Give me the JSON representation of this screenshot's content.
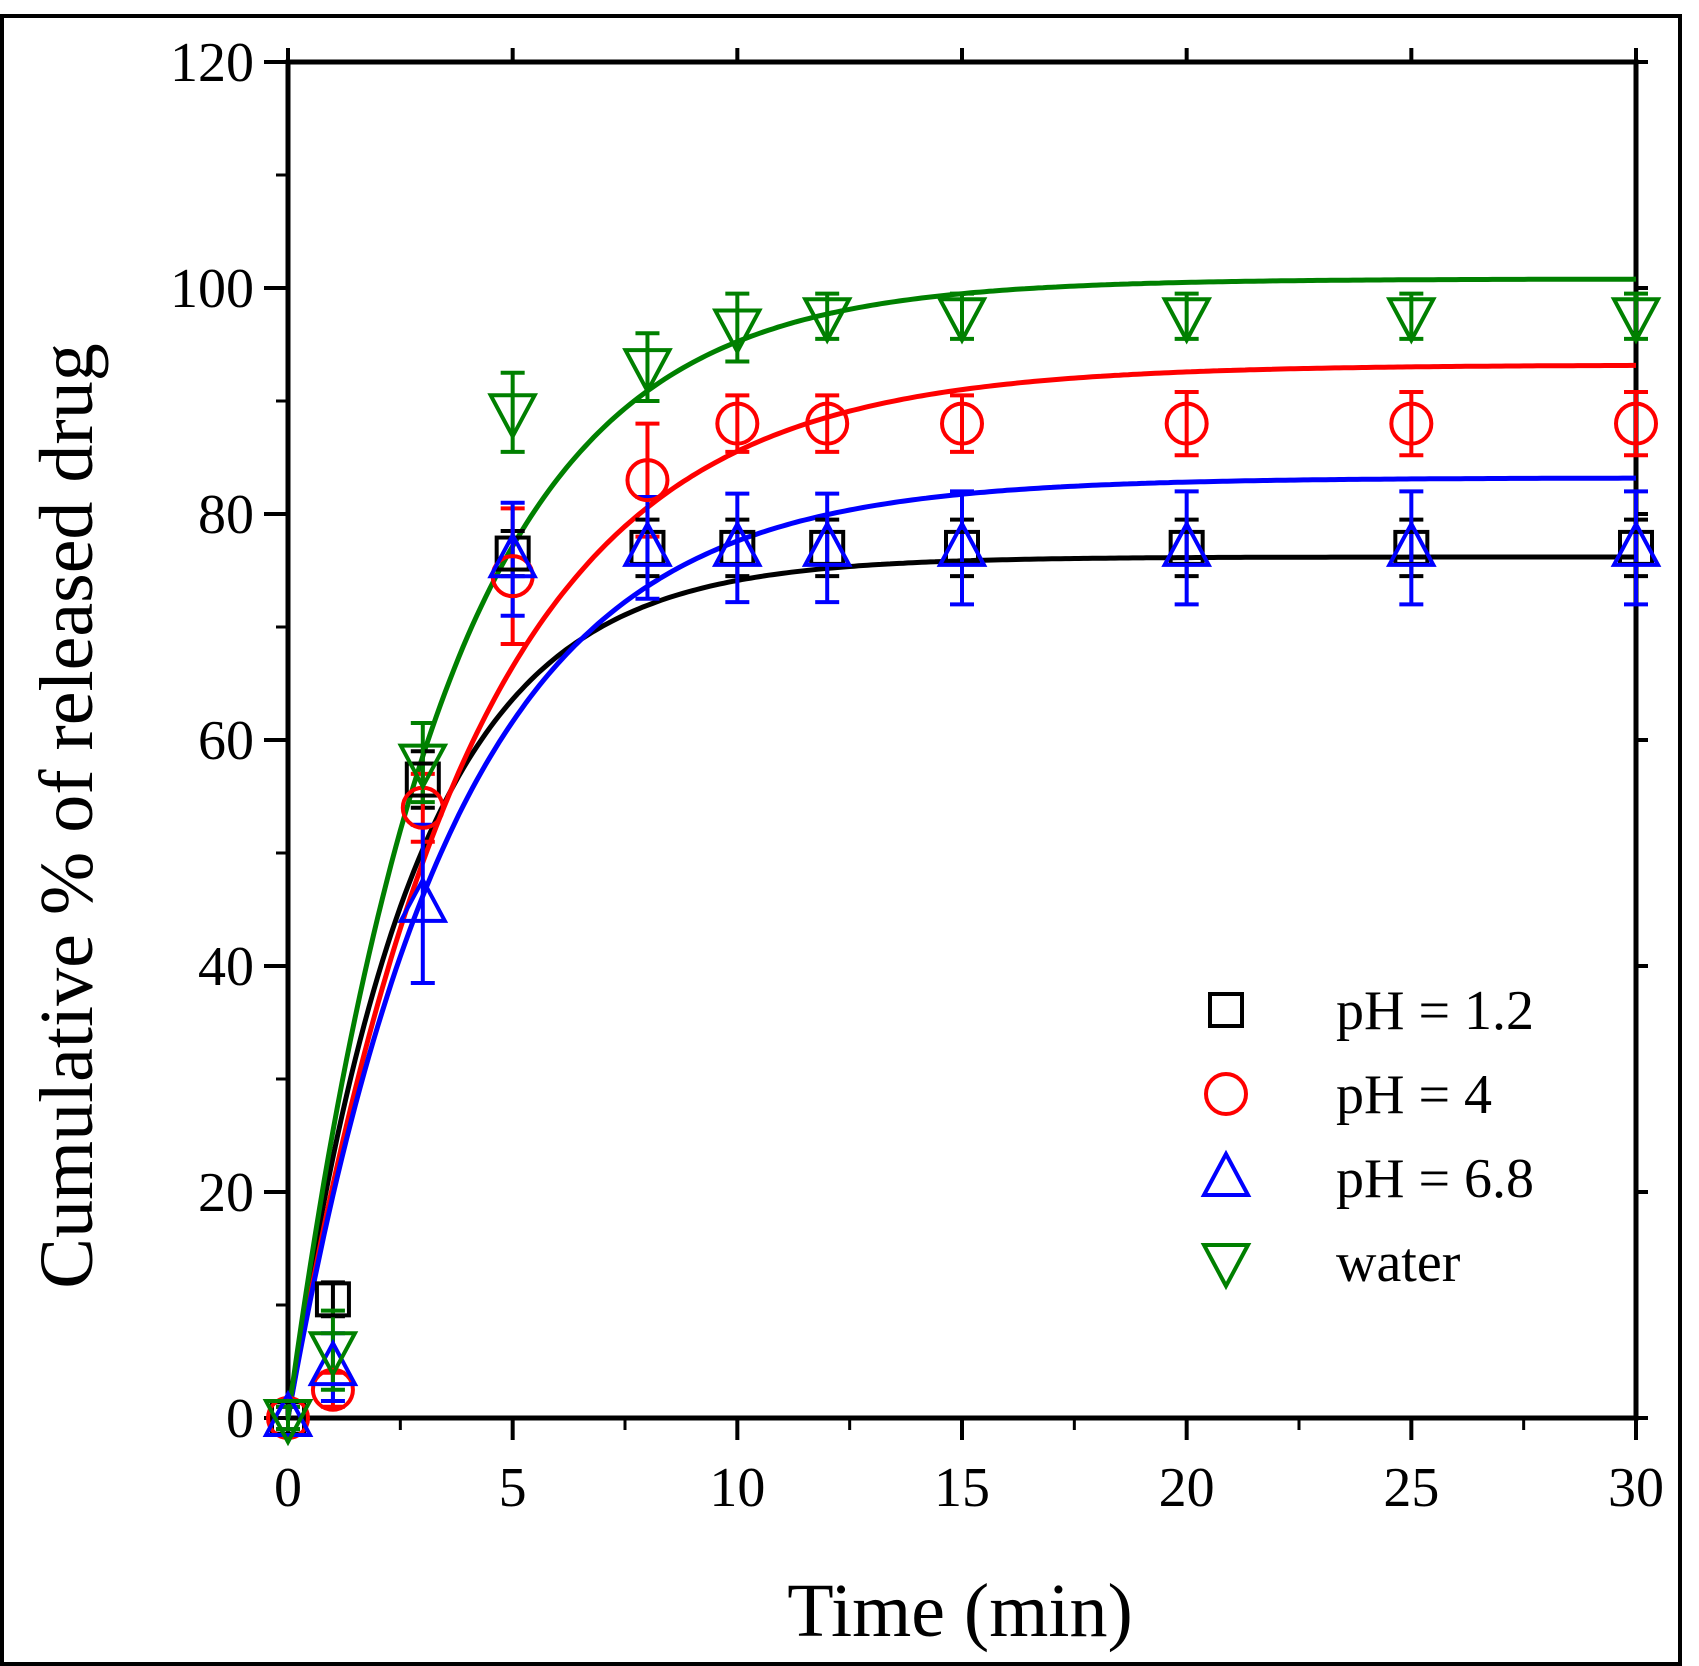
{
  "chart_data": {
    "type": "scatter",
    "title": "",
    "xlabel": "Time (min)",
    "ylabel": "Cumulative % of released drug",
    "xlim": [
      0,
      30
    ],
    "ylim": [
      0,
      120
    ],
    "xticks": [
      0,
      5,
      10,
      15,
      20,
      25,
      30
    ],
    "yticks": [
      0,
      20,
      40,
      60,
      80,
      100,
      120
    ],
    "xtick_labels": [
      "0",
      "5",
      "10",
      "15",
      "20",
      "25",
      "30"
    ],
    "ytick_labels": [
      "0",
      "20",
      "40",
      "60",
      "80",
      "100",
      "120"
    ],
    "grid": false,
    "legend_position": "bottom-right",
    "series": [
      {
        "name": "pH = 1.2",
        "marker": "square",
        "color": "#000000",
        "x": [
          0,
          1,
          3,
          5,
          8,
          10,
          12,
          15,
          20,
          25,
          30
        ],
        "y": [
          0,
          10.5,
          56.5,
          76.5,
          77,
          77,
          77,
          77,
          77,
          77,
          77
        ],
        "err": [
          1,
          1.5,
          2.5,
          2,
          2.5,
          2.5,
          2.5,
          2.5,
          2.5,
          2.5,
          2.5
        ],
        "fit": {
          "model": "first-order",
          "plateau": 76.2,
          "k": 0.36
        }
      },
      {
        "name": "pH = 4",
        "marker": "circle",
        "color": "#ff0000",
        "x": [
          0,
          1,
          3,
          5,
          8,
          10,
          12,
          15,
          20,
          25,
          30
        ],
        "y": [
          0,
          2.5,
          54,
          74.5,
          83,
          88,
          88,
          88,
          88,
          88,
          88
        ],
        "err": [
          1,
          1.5,
          3,
          6,
          5,
          2.5,
          2.5,
          2.5,
          2.8,
          2.8,
          2.8
        ],
        "fit": {
          "model": "first-order",
          "plateau": 93.2,
          "k": 0.25
        }
      },
      {
        "name": "pH = 6.8",
        "marker": "triangle-up",
        "color": "#0000ff",
        "x": [
          0,
          1,
          3,
          5,
          8,
          10,
          12,
          15,
          20,
          25,
          30
        ],
        "y": [
          0,
          4.5,
          45.5,
          76,
          77,
          77,
          77,
          77,
          77,
          77,
          77
        ],
        "err": [
          1,
          3,
          7,
          5,
          4.5,
          4.8,
          4.8,
          5,
          5,
          5,
          5
        ],
        "fit": {
          "model": "first-order",
          "plateau": 83.2,
          "k": 0.27
        }
      },
      {
        "name": "water",
        "marker": "triangle-down",
        "color": "#008000",
        "x": [
          0,
          1,
          3,
          5,
          8,
          10,
          12,
          15,
          20,
          25,
          30
        ],
        "y": [
          0,
          6,
          58,
          89,
          93,
          96.5,
          97.5,
          97.5,
          97.5,
          97.5,
          97.5
        ],
        "err": [
          1,
          3.5,
          3.5,
          3.5,
          3,
          3,
          2,
          2,
          2,
          2,
          2
        ],
        "fit": {
          "model": "first-order",
          "plateau": 100.8,
          "k": 0.29
        }
      }
    ]
  }
}
